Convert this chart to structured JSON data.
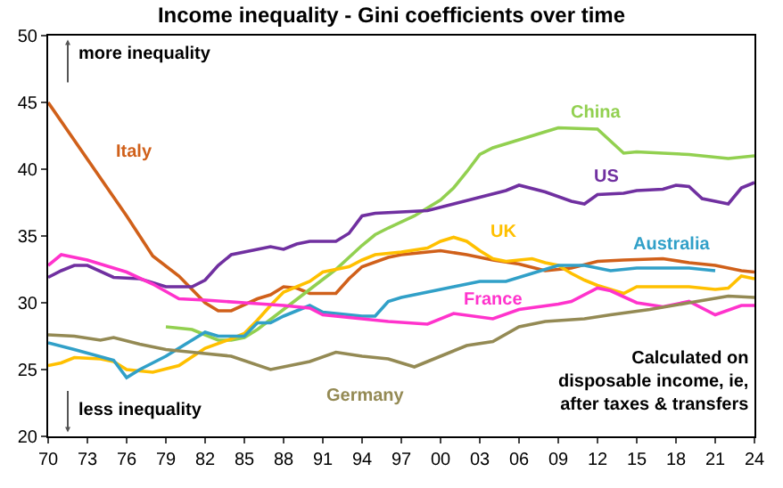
{
  "chart_data": {
    "type": "line",
    "title": "Income inequality - Gini coefficients over time",
    "xlim": [
      1970,
      2024
    ],
    "xticks": [
      {
        "value": 1970,
        "label": "70"
      },
      {
        "value": 1973,
        "label": "73"
      },
      {
        "value": 1976,
        "label": "76"
      },
      {
        "value": 1979,
        "label": "79"
      },
      {
        "value": 1982,
        "label": "82"
      },
      {
        "value": 1985,
        "label": "85"
      },
      {
        "value": 1988,
        "label": "88"
      },
      {
        "value": 1991,
        "label": "91"
      },
      {
        "value": 1994,
        "label": "94"
      },
      {
        "value": 1997,
        "label": "97"
      },
      {
        "value": 2000,
        "label": "00"
      },
      {
        "value": 2003,
        "label": "03"
      },
      {
        "value": 2006,
        "label": "06"
      },
      {
        "value": 2009,
        "label": "09"
      },
      {
        "value": 2012,
        "label": "12"
      },
      {
        "value": 2015,
        "label": "15"
      },
      {
        "value": 2018,
        "label": "18"
      },
      {
        "value": 2021,
        "label": "21"
      },
      {
        "value": 2024,
        "label": "24"
      }
    ],
    "ylim": [
      20,
      50
    ],
    "yticks": [
      20,
      25,
      30,
      35,
      40,
      45,
      50
    ],
    "grid": false,
    "legend": false,
    "marker": "none",
    "line_style": "solid",
    "series": [
      {
        "name": "Italy",
        "color": "#d0601a",
        "x": [
          1970,
          1976,
          1978,
          1980,
          1981,
          1982,
          1983,
          1984,
          1986,
          1987,
          1988,
          1989,
          1990,
          1992,
          1993,
          1994,
          1996,
          1997,
          1999,
          2000,
          2002,
          2004,
          2006,
          2008,
          2010,
          2012,
          2014,
          2017,
          2019,
          2021,
          2023,
          2024
        ],
        "values": [
          45,
          36.5,
          33.5,
          32,
          31,
          30,
          29.4,
          29.4,
          30.3,
          30.6,
          31.2,
          31.1,
          30.7,
          30.7,
          31.8,
          32.7,
          33.4,
          33.6,
          33.8,
          33.9,
          33.6,
          33.2,
          32.9,
          32.4,
          32.6,
          33.1,
          33.2,
          33.3,
          33.0,
          32.8,
          32.4,
          32.3
        ]
      },
      {
        "name": "China",
        "color": "#92d050",
        "x": [
          1979,
          1981,
          1982,
          1983,
          1984,
          1985,
          1986,
          1988,
          1990,
          1992,
          1994,
          1995,
          1996,
          1998,
          2000,
          2001,
          2002,
          2003,
          2004,
          2006,
          2008,
          2009,
          2012,
          2014,
          2015,
          2017,
          2019,
          2021,
          2022,
          2024
        ],
        "values": [
          28.2,
          28.0,
          27.6,
          27.2,
          27.2,
          27.4,
          28.0,
          29.5,
          31.0,
          32.5,
          34.3,
          35.1,
          35.6,
          36.5,
          37.7,
          38.6,
          39.8,
          41.1,
          41.6,
          42.2,
          42.8,
          43.1,
          43.0,
          41.2,
          41.3,
          41.2,
          41.1,
          40.9,
          40.8,
          41.0
        ]
      },
      {
        "name": "US",
        "color": "#7030a0",
        "x": [
          1970,
          1971,
          1972,
          1973,
          1975,
          1977,
          1978,
          1979,
          1981,
          1982,
          1983,
          1984,
          1986,
          1987,
          1988,
          1989,
          1990,
          1992,
          1993,
          1994,
          1995,
          1997,
          1999,
          2001,
          2003,
          2005,
          2006,
          2008,
          2010,
          2011,
          2012,
          2014,
          2015,
          2017,
          2018,
          2019,
          2020,
          2021,
          2022,
          2023,
          2024
        ],
        "values": [
          31.9,
          32.4,
          32.8,
          32.8,
          31.9,
          31.8,
          31.5,
          31.2,
          31.2,
          31.7,
          32.8,
          33.6,
          34.0,
          34.2,
          34.0,
          34.4,
          34.6,
          34.6,
          35.2,
          36.5,
          36.7,
          36.8,
          36.9,
          37.4,
          37.9,
          38.4,
          38.8,
          38.3,
          37.6,
          37.4,
          38.1,
          38.2,
          38.4,
          38.5,
          38.8,
          38.7,
          37.8,
          37.6,
          37.4,
          38.6,
          39.0
        ]
      },
      {
        "name": "UK",
        "color": "#ffc000",
        "x": [
          1970,
          1971,
          1972,
          1974,
          1975,
          1976,
          1978,
          1980,
          1982,
          1984,
          1985,
          1986,
          1987,
          1988,
          1990,
          1991,
          1993,
          1994,
          1995,
          1996,
          1997,
          1999,
          2000,
          2001,
          2002,
          2003,
          2004,
          2005,
          2007,
          2008,
          2009,
          2010,
          2011,
          2012,
          2013,
          2014,
          2015,
          2017,
          2019,
          2021,
          2022,
          2023,
          2024
        ],
        "values": [
          25.3,
          25.5,
          25.9,
          25.8,
          25.6,
          25.0,
          24.8,
          25.3,
          26.6,
          27.3,
          27.7,
          28.7,
          29.8,
          30.8,
          31.6,
          32.3,
          32.7,
          33.2,
          33.6,
          33.7,
          33.8,
          34.1,
          34.6,
          34.9,
          34.6,
          33.9,
          33.3,
          33.1,
          33.3,
          33.0,
          32.8,
          32.2,
          31.7,
          31.3,
          31.0,
          30.7,
          31.2,
          31.2,
          31.2,
          31.0,
          31.1,
          32.0,
          31.8
        ]
      },
      {
        "name": "Australia",
        "color": "#31a0c8",
        "x": [
          1970,
          1972,
          1975,
          1976,
          1977,
          1979,
          1982,
          1983,
          1985,
          1986,
          1987,
          1988,
          1990,
          1991,
          1994,
          1995,
          1996,
          1997,
          1999,
          2001,
          2003,
          2005,
          2007,
          2009,
          2011,
          2013,
          2015,
          2017,
          2019,
          2021
        ],
        "values": [
          27.0,
          26.5,
          25.7,
          24.4,
          25.0,
          26.0,
          27.8,
          27.5,
          27.5,
          28.5,
          28.5,
          29.0,
          29.8,
          29.3,
          29.0,
          29.0,
          30.1,
          30.4,
          30.8,
          31.2,
          31.6,
          31.6,
          32.2,
          32.8,
          32.8,
          32.4,
          32.6,
          32.6,
          32.6,
          32.4
        ]
      },
      {
        "name": "France",
        "color": "#ff33cc",
        "x": [
          1970,
          1971,
          1973,
          1976,
          1978,
          1980,
          1982,
          1985,
          1988,
          1990,
          1991,
          1994,
          1996,
          1999,
          2001,
          2004,
          2006,
          2009,
          2010,
          2012,
          2013,
          2015,
          2017,
          2019,
          2021,
          2023,
          2024
        ],
        "values": [
          32.8,
          33.6,
          33.2,
          32.3,
          31.4,
          30.3,
          30.2,
          30.0,
          29.8,
          29.6,
          29.1,
          28.8,
          28.6,
          28.4,
          29.2,
          28.8,
          29.5,
          29.9,
          30.1,
          31.1,
          30.9,
          30.0,
          29.7,
          30.1,
          29.1,
          29.8,
          29.8
        ]
      },
      {
        "name": "Germany",
        "color": "#948a54",
        "x": [
          1970,
          1972,
          1974,
          1975,
          1977,
          1979,
          1982,
          1984,
          1987,
          1990,
          1992,
          1994,
          1996,
          1998,
          2000,
          2002,
          2004,
          2006,
          2008,
          2011,
          2013,
          2016,
          2019,
          2022,
          2024
        ],
        "values": [
          27.6,
          27.5,
          27.2,
          27.4,
          26.9,
          26.5,
          26.2,
          26.0,
          25.0,
          25.6,
          26.3,
          26.0,
          25.8,
          25.2,
          26.0,
          26.8,
          27.1,
          28.2,
          28.6,
          28.8,
          29.1,
          29.5,
          30.0,
          30.5,
          30.4
        ]
      }
    ],
    "annotations": [
      "more inequality",
      "less inequality",
      "Calculated on disposable income, ie, after taxes & transfers"
    ]
  }
}
